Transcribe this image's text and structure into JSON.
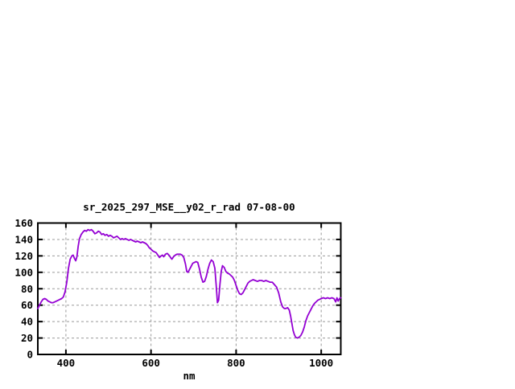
{
  "window": {
    "background_color": "#ffffff"
  },
  "chart_data": {
    "type": "line",
    "title": "sr_2025_297_MSE__y02_r_rad 07-08-00",
    "xlabel": "nm",
    "ylabel": "",
    "xlim": [
      334,
      1046
    ],
    "ylim": [
      0,
      160
    ],
    "xticks": [
      400,
      600,
      800,
      1000
    ],
    "yticks": [
      0,
      20,
      40,
      60,
      80,
      100,
      120,
      140,
      160
    ],
    "grid": "dashed",
    "legend_position": "none",
    "line_color": "#9400d3",
    "grid_color": "#999999",
    "frame_color": "#000000",
    "series": [
      {
        "name": "sr_2025_297_MSE__y02_r_rad",
        "points": [
          [
            334,
            56
          ],
          [
            338,
            60
          ],
          [
            342,
            64
          ],
          [
            346,
            67
          ],
          [
            350,
            68
          ],
          [
            354,
            67
          ],
          [
            358,
            65
          ],
          [
            362,
            64
          ],
          [
            366,
            63
          ],
          [
            370,
            63
          ],
          [
            374,
            64
          ],
          [
            378,
            65
          ],
          [
            382,
            66
          ],
          [
            386,
            67
          ],
          [
            390,
            68
          ],
          [
            394,
            70
          ],
          [
            398,
            76
          ],
          [
            402,
            88
          ],
          [
            406,
            105
          ],
          [
            410,
            116
          ],
          [
            414,
            120
          ],
          [
            417,
            121
          ],
          [
            420,
            117
          ],
          [
            423,
            114
          ],
          [
            426,
            119
          ],
          [
            429,
            132
          ],
          [
            432,
            141
          ],
          [
            436,
            146
          ],
          [
            440,
            149
          ],
          [
            444,
            151
          ],
          [
            448,
            150
          ],
          [
            452,
            152
          ],
          [
            456,
            151
          ],
          [
            460,
            152
          ],
          [
            464,
            150
          ],
          [
            468,
            147
          ],
          [
            472,
            148
          ],
          [
            476,
            150
          ],
          [
            480,
            149
          ],
          [
            484,
            146
          ],
          [
            488,
            147
          ],
          [
            492,
            145
          ],
          [
            496,
            146
          ],
          [
            500,
            144
          ],
          [
            504,
            145
          ],
          [
            508,
            144
          ],
          [
            512,
            142
          ],
          [
            516,
            143
          ],
          [
            520,
            144
          ],
          [
            524,
            142
          ],
          [
            528,
            140
          ],
          [
            532,
            141
          ],
          [
            536,
            140
          ],
          [
            540,
            141
          ],
          [
            544,
            140
          ],
          [
            548,
            139
          ],
          [
            552,
            140
          ],
          [
            556,
            139
          ],
          [
            560,
            138
          ],
          [
            564,
            137
          ],
          [
            568,
            138
          ],
          [
            572,
            137
          ],
          [
            576,
            136
          ],
          [
            580,
            137
          ],
          [
            584,
            136
          ],
          [
            588,
            135
          ],
          [
            592,
            133
          ],
          [
            596,
            130
          ],
          [
            600,
            128
          ],
          [
            604,
            126
          ],
          [
            608,
            125
          ],
          [
            612,
            124
          ],
          [
            616,
            121
          ],
          [
            620,
            118
          ],
          [
            624,
            120
          ],
          [
            627,
            121
          ],
          [
            630,
            119
          ],
          [
            634,
            122
          ],
          [
            638,
            123
          ],
          [
            642,
            121
          ],
          [
            646,
            118
          ],
          [
            649,
            116
          ],
          [
            653,
            119
          ],
          [
            657,
            121
          ],
          [
            661,
            122
          ],
          [
            665,
            122
          ],
          [
            669,
            122
          ],
          [
            673,
            121
          ],
          [
            677,
            118
          ],
          [
            681,
            110
          ],
          [
            684,
            101
          ],
          [
            687,
            100
          ],
          [
            690,
            103
          ],
          [
            694,
            107
          ],
          [
            698,
            111
          ],
          [
            702,
            112
          ],
          [
            706,
            113
          ],
          [
            710,
            112
          ],
          [
            714,
            104
          ],
          [
            718,
            94
          ],
          [
            722,
            88
          ],
          [
            726,
            89
          ],
          [
            730,
            95
          ],
          [
            734,
            104
          ],
          [
            738,
            111
          ],
          [
            742,
            115
          ],
          [
            746,
            113
          ],
          [
            750,
            105
          ],
          [
            753,
            85
          ],
          [
            756,
            63
          ],
          [
            759,
            66
          ],
          [
            762,
            85
          ],
          [
            765,
            101
          ],
          [
            768,
            108
          ],
          [
            772,
            106
          ],
          [
            776,
            101
          ],
          [
            780,
            99
          ],
          [
            784,
            98
          ],
          [
            788,
            96
          ],
          [
            792,
            94
          ],
          [
            796,
            90
          ],
          [
            800,
            84
          ],
          [
            804,
            78
          ],
          [
            808,
            74
          ],
          [
            812,
            73
          ],
          [
            816,
            75
          ],
          [
            820,
            79
          ],
          [
            824,
            83
          ],
          [
            828,
            87
          ],
          [
            832,
            89
          ],
          [
            836,
            90
          ],
          [
            840,
            91
          ],
          [
            845,
            90
          ],
          [
            850,
            89
          ],
          [
            855,
            90
          ],
          [
            860,
            90
          ],
          [
            865,
            89
          ],
          [
            870,
            90
          ],
          [
            875,
            89
          ],
          [
            880,
            88
          ],
          [
            885,
            88
          ],
          [
            890,
            85
          ],
          [
            895,
            82
          ],
          [
            900,
            75
          ],
          [
            905,
            64
          ],
          [
            909,
            58
          ],
          [
            913,
            56
          ],
          [
            917,
            56
          ],
          [
            921,
            57
          ],
          [
            925,
            54
          ],
          [
            928,
            47
          ],
          [
            931,
            38
          ],
          [
            934,
            29
          ],
          [
            937,
            24
          ],
          [
            940,
            21
          ],
          [
            944,
            20
          ],
          [
            948,
            21
          ],
          [
            952,
            23
          ],
          [
            956,
            27
          ],
          [
            960,
            33
          ],
          [
            964,
            41
          ],
          [
            968,
            47
          ],
          [
            972,
            51
          ],
          [
            976,
            55
          ],
          [
            980,
            59
          ],
          [
            984,
            62
          ],
          [
            988,
            64
          ],
          [
            992,
            66
          ],
          [
            996,
            67
          ],
          [
            1000,
            68
          ],
          [
            1005,
            69
          ],
          [
            1010,
            68
          ],
          [
            1015,
            69
          ],
          [
            1020,
            68
          ],
          [
            1025,
            69
          ],
          [
            1030,
            68
          ],
          [
            1034,
            64
          ],
          [
            1037,
            69
          ],
          [
            1040,
            65
          ],
          [
            1043,
            68
          ],
          [
            1046,
            69
          ]
        ]
      }
    ]
  }
}
